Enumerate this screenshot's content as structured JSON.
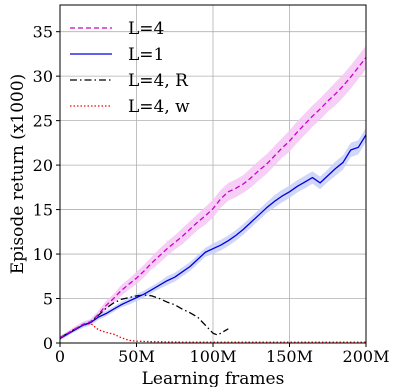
{
  "chart_data": {
    "type": "line",
    "title": "",
    "xlabel": "Learning frames",
    "ylabel": "Episode return (x1000)",
    "xlim": [
      0,
      200
    ],
    "ylim": [
      0,
      38
    ],
    "xticks": [
      0,
      50,
      100,
      150,
      200
    ],
    "xtick_labels": [
      "0",
      "50M",
      "100M",
      "150M",
      "200M"
    ],
    "yticks": [
      0,
      5,
      10,
      15,
      20,
      25,
      30,
      35
    ],
    "ytick_labels": [
      "0",
      "5",
      "10",
      "15",
      "20",
      "25",
      "30",
      "35"
    ],
    "grid": true,
    "legend_position": "top-left",
    "series": [
      {
        "name": "L=4",
        "color": "#cc00cc",
        "style": "dashed",
        "band_color": "#f4c6f4",
        "x": [
          0,
          5,
          10,
          15,
          20,
          25,
          30,
          35,
          40,
          45,
          50,
          55,
          60,
          65,
          70,
          75,
          80,
          85,
          90,
          95,
          100,
          105,
          110,
          115,
          120,
          125,
          130,
          135,
          140,
          145,
          150,
          155,
          160,
          165,
          170,
          175,
          180,
          185,
          190,
          195,
          200
        ],
        "y": [
          0.6,
          1.1,
          1.6,
          2.1,
          2.4,
          3.2,
          4.2,
          5.0,
          5.9,
          6.6,
          7.3,
          8.1,
          9.0,
          9.8,
          10.6,
          11.3,
          12.0,
          12.8,
          13.6,
          14.3,
          15.1,
          16.2,
          17.0,
          17.4,
          17.9,
          18.6,
          19.4,
          20.1,
          21.0,
          21.9,
          22.7,
          23.7,
          24.6,
          25.5,
          26.3,
          27.2,
          28.0,
          28.9,
          29.9,
          31.0,
          32.1
        ],
        "band": [
          0.2,
          0.2,
          0.3,
          0.3,
          0.3,
          0.4,
          0.5,
          0.5,
          0.6,
          0.6,
          0.7,
          0.7,
          0.7,
          0.8,
          0.8,
          0.8,
          0.9,
          0.9,
          0.9,
          1.0,
          1.0,
          1.0,
          1.0,
          1.0,
          1.0,
          1.1,
          1.1,
          1.1,
          1.1,
          1.1,
          1.2,
          1.2,
          1.2,
          1.2,
          1.2,
          1.2,
          1.3,
          1.3,
          1.3,
          1.3,
          1.3
        ]
      },
      {
        "name": "L=1",
        "color": "#0000dd",
        "style": "solid",
        "band_color": "#c8d0f8",
        "x": [
          0,
          5,
          10,
          15,
          20,
          25,
          30,
          35,
          40,
          45,
          50,
          55,
          60,
          65,
          70,
          75,
          80,
          85,
          90,
          95,
          100,
          105,
          110,
          115,
          120,
          125,
          130,
          135,
          140,
          145,
          150,
          155,
          160,
          165,
          170,
          175,
          180,
          185,
          190,
          195,
          200
        ],
        "y": [
          0.5,
          1.0,
          1.5,
          2.0,
          2.3,
          2.9,
          3.3,
          3.8,
          4.3,
          4.7,
          5.1,
          5.5,
          6.0,
          6.5,
          7.0,
          7.4,
          8.0,
          8.6,
          9.4,
          10.2,
          10.6,
          11.0,
          11.5,
          12.1,
          12.8,
          13.6,
          14.4,
          15.2,
          15.9,
          16.5,
          17.0,
          17.6,
          18.1,
          18.6,
          18.0,
          18.8,
          19.6,
          20.3,
          21.7,
          22.0,
          23.4
        ],
        "band": [
          0.2,
          0.2,
          0.2,
          0.3,
          0.3,
          0.3,
          0.3,
          0.3,
          0.3,
          0.4,
          0.4,
          0.4,
          0.4,
          0.4,
          0.5,
          0.5,
          0.5,
          0.5,
          0.5,
          0.5,
          0.6,
          0.6,
          0.6,
          0.6,
          0.6,
          0.6,
          0.6,
          0.6,
          0.7,
          0.7,
          0.7,
          0.7,
          0.7,
          0.7,
          0.7,
          0.7,
          0.8,
          0.8,
          0.8,
          0.8,
          0.8
        ]
      },
      {
        "name": "L=4, R",
        "color": "#000000",
        "style": "dashdot",
        "x": [
          0,
          5,
          10,
          15,
          20,
          25,
          30,
          35,
          40,
          45,
          50,
          55,
          60,
          65,
          70,
          75,
          80,
          85,
          90,
          95,
          100,
          103,
          106,
          110
        ],
        "y": [
          0.6,
          1.1,
          1.6,
          2.0,
          2.3,
          3.1,
          3.9,
          4.5,
          4.9,
          5.1,
          5.3,
          5.4,
          5.3,
          5.0,
          4.6,
          4.3,
          3.8,
          3.4,
          2.9,
          2.0,
          1.1,
          0.9,
          1.2,
          1.6
        ]
      },
      {
        "name": "L=4, w",
        "color": "#ff0000",
        "style": "dotted",
        "x": [
          0,
          5,
          10,
          15,
          20,
          25,
          30,
          35,
          40,
          45,
          50,
          60,
          80,
          100,
          150,
          200
        ],
        "y": [
          0.6,
          1.1,
          1.6,
          2.0,
          2.2,
          1.5,
          1.2,
          1.0,
          0.6,
          0.3,
          0.2,
          0.15,
          0.1,
          0.1,
          0.1,
          0.1
        ]
      }
    ]
  }
}
